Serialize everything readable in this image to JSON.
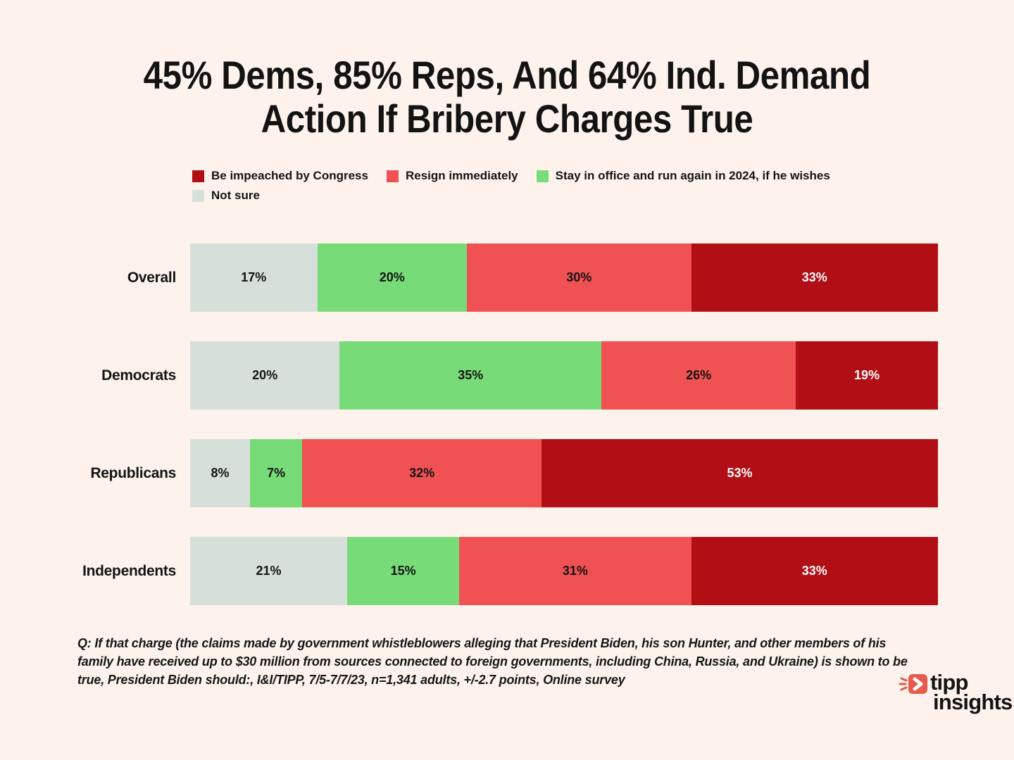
{
  "title": {
    "lines": [
      "45% Dems, 85% Reps, And 64% Ind. Demand",
      "Action If Bribery Charges True"
    ]
  },
  "legend": {
    "items": [
      {
        "label": "Be impeached by Congress",
        "color": "#b10e15"
      },
      {
        "label": "Resign immediately",
        "color": "#f05153"
      },
      {
        "label": "Stay in office and run again in 2024, if he wishes",
        "color": "#77dc78"
      },
      {
        "label": "Not sure",
        "color": "#d7dfda"
      }
    ]
  },
  "chart_data": {
    "type": "bar",
    "orientation": "horizontal-stacked",
    "title": "45% Dems, 85% Reps, And 64% Ind. Demand Action If Bribery Charges True",
    "categories": [
      "Overall",
      "Democrats",
      "Republicans",
      "Independents"
    ],
    "series": [
      {
        "name": "Not sure",
        "color": "#d7dfda",
        "label_color": "#141414",
        "values": [
          17,
          20,
          8,
          21
        ]
      },
      {
        "name": "Stay in office and run again in 2024, if he wishes",
        "color": "#77dc78",
        "label_color": "#141414",
        "values": [
          20,
          35,
          7,
          15
        ]
      },
      {
        "name": "Resign immediately",
        "color": "#f05153",
        "label_color": "#141414",
        "values": [
          30,
          26,
          32,
          31
        ]
      },
      {
        "name": "Be impeached by Congress",
        "color": "#b10e15",
        "label_color": "#ffffff",
        "values": [
          33,
          19,
          53,
          33
        ]
      }
    ],
    "value_suffix": "%",
    "xlim": [
      0,
      100
    ],
    "grid": false,
    "legend_position": "top-left",
    "background_color": "#fdf3ec"
  },
  "footnote": "Q: If that charge (the claims made by government whistleblowers alleging that President Biden, his son Hunter, and other members of his family have received up to $30 million from sources connected to foreign governments, including China, Russia, and Ukraine) is shown to be true, President Biden should:, I&I/TIPP, 7/5-7/7/23, n=1,341 adults, +/-2.7 points,  Online survey",
  "logo": {
    "line1": "tipp",
    "line2": "insights",
    "accent_color": "#e9594c",
    "text_color": "#3b3a5d"
  }
}
